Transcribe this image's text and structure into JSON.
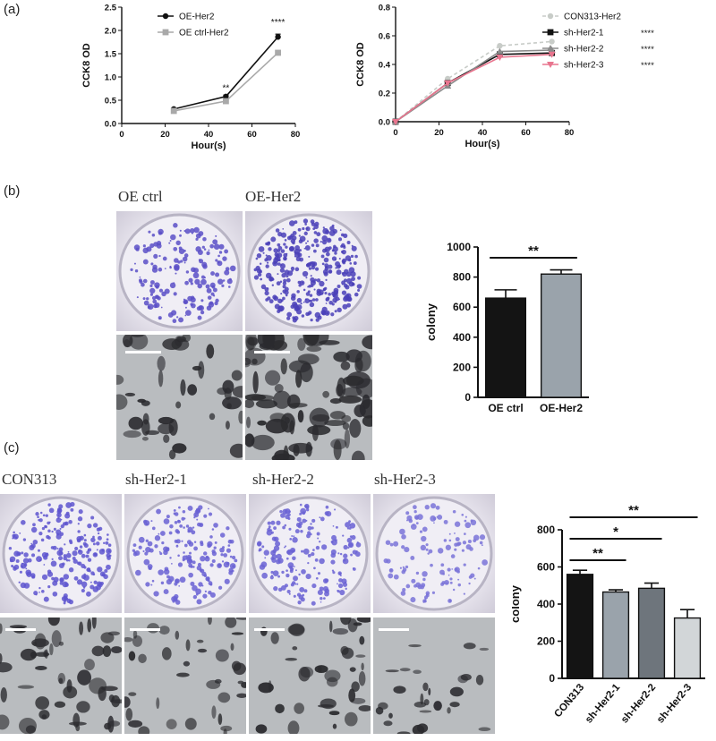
{
  "panels": {
    "a": "(a)",
    "b": "(b)",
    "c": "(c)"
  },
  "panel_b_captions": [
    "OE ctrl",
    "OE-Her2"
  ],
  "panel_c_captions": [
    "CON313",
    "sh-Her2-1",
    "sh-Her2-2",
    "sh-Her2-3"
  ],
  "chart_data": [
    {
      "id": "a-left",
      "type": "line",
      "xlabel": "Hour(s)",
      "ylabel": "CCK8 OD",
      "xlim": [
        0,
        80
      ],
      "ylim": [
        0,
        2.5
      ],
      "xticks": [
        "0",
        "20",
        "40",
        "60",
        "80"
      ],
      "yticks": [
        "0.0",
        "0.5",
        "1.0",
        "1.5",
        "2.0",
        "2.5"
      ],
      "legend_position": "top-left",
      "x": [
        24,
        48,
        72
      ],
      "series": [
        {
          "name": "OE-Her2",
          "values": [
            0.31,
            0.58,
            1.86
          ],
          "errors": [
            0.02,
            0.03,
            0.06
          ],
          "color": "#111111",
          "marker": "circle",
          "dashed": false
        },
        {
          "name": "OE ctrl-Her2",
          "values": [
            0.27,
            0.48,
            1.52
          ],
          "errors": [
            0.02,
            0.02,
            0.04
          ],
          "color": "#a9a9a9",
          "marker": "square",
          "dashed": false
        }
      ],
      "annotations": [
        {
          "x": 48,
          "y": 0.7,
          "text": "**"
        },
        {
          "x": 72,
          "y": 2.12,
          "text": "****"
        }
      ]
    },
    {
      "id": "a-right",
      "type": "line",
      "xlabel": "Hour(s)",
      "ylabel": "CCK8 OD",
      "xlim": [
        0,
        80
      ],
      "ylim": [
        0,
        0.8
      ],
      "xticks": [
        "0",
        "20",
        "40",
        "60",
        "80"
      ],
      "yticks": [
        "0.0",
        "0.2",
        "0.4",
        "0.6",
        "0.8"
      ],
      "legend_position": "top-right",
      "x": [
        0,
        24,
        48,
        72
      ],
      "series": [
        {
          "name": "CON313-Her2",
          "sig": "",
          "values": [
            0.0,
            0.3,
            0.53,
            0.56
          ],
          "color": "#c8ccc8",
          "marker": "circle",
          "dashed": true
        },
        {
          "name": "sh-Her2-1",
          "sig": "****",
          "values": [
            0.0,
            0.27,
            0.47,
            0.48
          ],
          "color": "#111111",
          "marker": "square",
          "dashed": false
        },
        {
          "name": "sh-Her2-2",
          "sig": "****",
          "values": [
            0.0,
            0.25,
            0.49,
            0.5
          ],
          "color": "#8a8a8a",
          "marker": "triangle",
          "dashed": false
        },
        {
          "name": "sh-Her2-3",
          "sig": "****",
          "values": [
            0.0,
            0.27,
            0.45,
            0.47
          ],
          "color": "#e8758e",
          "marker": "triangle-down",
          "dashed": false
        }
      ]
    },
    {
      "id": "b-bar",
      "type": "bar",
      "ylabel": "colony",
      "ylim": [
        0,
        1000
      ],
      "yticks": [
        "0",
        "200",
        "400",
        "600",
        "800",
        "1000"
      ],
      "categories": [
        "OE ctrl",
        "OE-Her2"
      ],
      "values": [
        660,
        820
      ],
      "errors": [
        55,
        28
      ],
      "colors": [
        "#141414",
        "#9aa3ab"
      ],
      "brackets": [
        {
          "from": 0,
          "to": 1,
          "text": "**"
        }
      ]
    },
    {
      "id": "c-bar",
      "type": "bar",
      "ylabel": "colony",
      "ylim": [
        0,
        800
      ],
      "yticks": [
        "0",
        "200",
        "400",
        "600",
        "800"
      ],
      "categories": [
        "CON313",
        "sh-Her2-1",
        "sh-Her2-2",
        "sh-Her2-3"
      ],
      "values": [
        560,
        465,
        485,
        325
      ],
      "errors": [
        22,
        12,
        28,
        45
      ],
      "colors": [
        "#141414",
        "#9aa3ab",
        "#6e757c",
        "#d2d6d8"
      ],
      "brackets": [
        {
          "from": 0,
          "to": 3,
          "text": "**"
        },
        {
          "from": 0,
          "to": 2,
          "text": "*"
        },
        {
          "from": 0,
          "to": 1,
          "text": "**"
        }
      ]
    }
  ]
}
